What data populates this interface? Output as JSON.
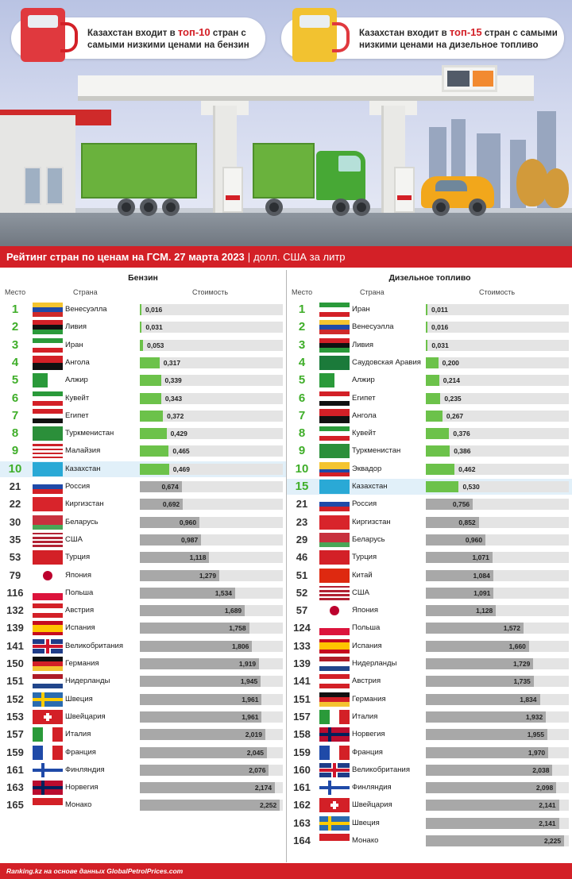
{
  "banner": {
    "left": {
      "prefix": "Казахстан входит в ",
      "highlight": "топ-10",
      "suffix": " стран с самыми низкими ценами на бензин"
    },
    "right": {
      "prefix": "Казахстан входит в ",
      "highlight": "топ-15",
      "suffix": " стран с самыми низкими ценами на дизельное топливо"
    }
  },
  "title": {
    "main": "Рейтинг стран по ценам на ГСМ. 27 марта 2023",
    "separator": "|",
    "unit": "долл. США за литр"
  },
  "columns": {
    "rank": "Место",
    "country": "Страна",
    "price": "Стоимость"
  },
  "colors": {
    "accent": "#d32027",
    "top_bar": "#6cc24a",
    "other_bar": "#a8a8a8",
    "highlight_row": "#e1f0f9",
    "rank_top": "#3fae29"
  },
  "chart_data": [
    {
      "type": "bar",
      "title": "Бензин",
      "value_max": 2.3,
      "highlight_country": "Казахстан",
      "rows": [
        {
          "rank": 1,
          "country": "Венесуэлла",
          "value": 0.016,
          "label": "0,016",
          "flag": "venezuela"
        },
        {
          "rank": 2,
          "country": "Ливия",
          "value": 0.031,
          "label": "0,031",
          "flag": "libya"
        },
        {
          "rank": 3,
          "country": "Иран",
          "value": 0.053,
          "label": "0,053",
          "flag": "iran"
        },
        {
          "rank": 4,
          "country": "Ангола",
          "value": 0.317,
          "label": "0,317",
          "flag": "angola"
        },
        {
          "rank": 5,
          "country": "Алжир",
          "value": 0.339,
          "label": "0,339",
          "flag": "algeria"
        },
        {
          "rank": 6,
          "country": "Кувейт",
          "value": 0.343,
          "label": "0,343",
          "flag": "kuwait"
        },
        {
          "rank": 7,
          "country": "Египет",
          "value": 0.372,
          "label": "0,372",
          "flag": "egypt"
        },
        {
          "rank": 8,
          "country": "Туркменистан",
          "value": 0.429,
          "label": "0,429",
          "flag": "turkmenistan"
        },
        {
          "rank": 9,
          "country": "Малайзия",
          "value": 0.465,
          "label": "0,465",
          "flag": "malaysia"
        },
        {
          "rank": 10,
          "country": "Казахстан",
          "value": 0.469,
          "label": "0,469",
          "flag": "kazakhstan"
        },
        {
          "rank": 21,
          "country": "Россия",
          "value": 0.674,
          "label": "0,674",
          "flag": "russia"
        },
        {
          "rank": 22,
          "country": "Киргизстан",
          "value": 0.692,
          "label": "0,692",
          "flag": "kyrgyzstan"
        },
        {
          "rank": 30,
          "country": "Беларусь",
          "value": 0.96,
          "label": "0,960",
          "flag": "belarus"
        },
        {
          "rank": 35,
          "country": "США",
          "value": 0.987,
          "label": "0,987",
          "flag": "usa"
        },
        {
          "rank": 53,
          "country": "Турция",
          "value": 1.118,
          "label": "1,118",
          "flag": "turkey"
        },
        {
          "rank": 79,
          "country": "Япония",
          "value": 1.279,
          "label": "1,279",
          "flag": "japan"
        },
        {
          "rank": 116,
          "country": "Польша",
          "value": 1.534,
          "label": "1,534",
          "flag": "poland"
        },
        {
          "rank": 132,
          "country": "Австрия",
          "value": 1.689,
          "label": "1,689",
          "flag": "austria"
        },
        {
          "rank": 139,
          "country": "Испания",
          "value": 1.758,
          "label": "1,758",
          "flag": "spain"
        },
        {
          "rank": 141,
          "country": "Великобритания",
          "value": 1.806,
          "label": "1,806",
          "flag": "uk"
        },
        {
          "rank": 150,
          "country": "Германия",
          "value": 1.919,
          "label": "1,919",
          "flag": "germany"
        },
        {
          "rank": 151,
          "country": "Нидерланды",
          "value": 1.945,
          "label": "1,945",
          "flag": "netherlands"
        },
        {
          "rank": 152,
          "country": "Швеция",
          "value": 1.961,
          "label": "1,961",
          "flag": "sweden"
        },
        {
          "rank": 153,
          "country": "Швейцария",
          "value": 1.961,
          "label": "1,961",
          "flag": "switzerland"
        },
        {
          "rank": 157,
          "country": "Италия",
          "value": 2.019,
          "label": "2,019",
          "flag": "italy"
        },
        {
          "rank": 159,
          "country": "Франция",
          "value": 2.045,
          "label": "2,045",
          "flag": "france"
        },
        {
          "rank": 161,
          "country": "Финляндия",
          "value": 2.076,
          "label": "2,076",
          "flag": "finland"
        },
        {
          "rank": 163,
          "country": "Норвегия",
          "value": 2.174,
          "label": "2,174",
          "flag": "norway"
        },
        {
          "rank": 165,
          "country": "Монако",
          "value": 2.252,
          "label": "2,252",
          "flag": "monaco"
        }
      ]
    },
    {
      "type": "bar",
      "title": "Дизельное топливо",
      "value_max": 2.3,
      "highlight_country": "Казахстан",
      "rows": [
        {
          "rank": 1,
          "country": "Иран",
          "value": 0.011,
          "label": "0,011",
          "flag": "iran"
        },
        {
          "rank": 2,
          "country": "Венесуэлла",
          "value": 0.016,
          "label": "0,016",
          "flag": "venezuela"
        },
        {
          "rank": 3,
          "country": "Ливия",
          "value": 0.031,
          "label": "0,031",
          "flag": "libya"
        },
        {
          "rank": 4,
          "country": "Саудовская Аравия",
          "value": 0.2,
          "label": "0,200",
          "flag": "saudi"
        },
        {
          "rank": 5,
          "country": "Алжир",
          "value": 0.214,
          "label": "0,214",
          "flag": "algeria"
        },
        {
          "rank": 6,
          "country": "Египет",
          "value": 0.235,
          "label": "0,235",
          "flag": "egypt"
        },
        {
          "rank": 7,
          "country": "Ангола",
          "value": 0.267,
          "label": "0,267",
          "flag": "angola"
        },
        {
          "rank": 8,
          "country": "Кувейт",
          "value": 0.376,
          "label": "0,376",
          "flag": "kuwait"
        },
        {
          "rank": 9,
          "country": "Туркменистан",
          "value": 0.386,
          "label": "0,386",
          "flag": "turkmenistan"
        },
        {
          "rank": 10,
          "country": "Эквадор",
          "value": 0.462,
          "label": "0,462",
          "flag": "ecuador"
        },
        {
          "rank": 15,
          "country": "Казахстан",
          "value": 0.53,
          "label": "0,530",
          "flag": "kazakhstan"
        },
        {
          "rank": 21,
          "country": "Россия",
          "value": 0.756,
          "label": "0,756",
          "flag": "russia"
        },
        {
          "rank": 23,
          "country": "Киргизстан",
          "value": 0.852,
          "label": "0,852",
          "flag": "kyrgyzstan"
        },
        {
          "rank": 29,
          "country": "Беларусь",
          "value": 0.96,
          "label": "0,960",
          "flag": "belarus"
        },
        {
          "rank": 46,
          "country": "Турция",
          "value": 1.071,
          "label": "1,071",
          "flag": "turkey"
        },
        {
          "rank": 51,
          "country": "Китай",
          "value": 1.084,
          "label": "1,084",
          "flag": "china"
        },
        {
          "rank": 52,
          "country": "США",
          "value": 1.091,
          "label": "1,091",
          "flag": "usa"
        },
        {
          "rank": 57,
          "country": "Япония",
          "value": 1.128,
          "label": "1,128",
          "flag": "japan"
        },
        {
          "rank": 124,
          "country": "Польша",
          "value": 1.572,
          "label": "1,572",
          "flag": "poland"
        },
        {
          "rank": 133,
          "country": "Испания",
          "value": 1.66,
          "label": "1,660",
          "flag": "spain"
        },
        {
          "rank": 139,
          "country": "Нидерланды",
          "value": 1.729,
          "label": "1,729",
          "flag": "netherlands"
        },
        {
          "rank": 141,
          "country": "Австрия",
          "value": 1.735,
          "label": "1,735",
          "flag": "austria"
        },
        {
          "rank": 151,
          "country": "Германия",
          "value": 1.834,
          "label": "1,834",
          "flag": "germany"
        },
        {
          "rank": 157,
          "country": "Италия",
          "value": 1.932,
          "label": "1,932",
          "flag": "italy"
        },
        {
          "rank": 158,
          "country": "Норвегия",
          "value": 1.955,
          "label": "1,955",
          "flag": "norway"
        },
        {
          "rank": 159,
          "country": "Франция",
          "value": 1.97,
          "label": "1,970",
          "flag": "france"
        },
        {
          "rank": 160,
          "country": "Великобритания",
          "value": 2.038,
          "label": "2,038",
          "flag": "uk"
        },
        {
          "rank": 161,
          "country": "Финляндия",
          "value": 2.098,
          "label": "2,098",
          "flag": "finland"
        },
        {
          "rank": 162,
          "country": "Швейцария",
          "value": 2.141,
          "label": "2,141",
          "flag": "switzerland"
        },
        {
          "rank": 163,
          "country": "Швеция",
          "value": 2.141,
          "label": "2,141",
          "flag": "sweden"
        },
        {
          "rank": 164,
          "country": "Монако",
          "value": 2.225,
          "label": "2,225",
          "flag": "monaco"
        }
      ]
    }
  ],
  "footer": {
    "text": "Ranking.kz на основе данных GlobalPetrolPrices.com"
  }
}
